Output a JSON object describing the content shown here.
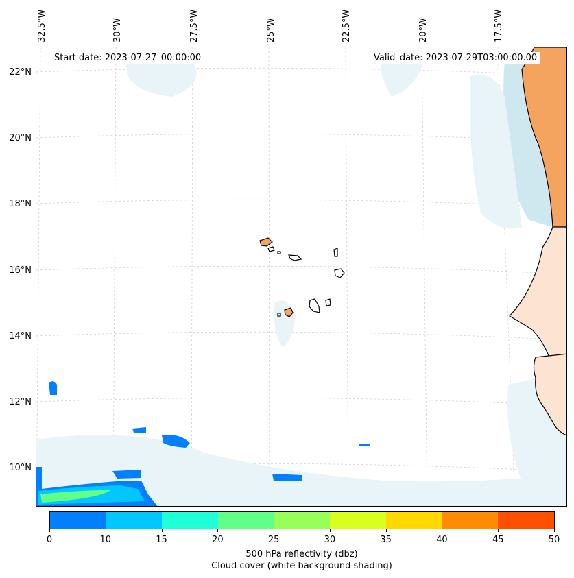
{
  "header": {
    "start_date": "Start date: 2023-07-27_00:00:00",
    "valid_date": "Valid_date: 2023-07-29T03:00:00.00"
  },
  "axes": {
    "lon_labels": [
      "32.5°W",
      "30°W",
      "27.5°W",
      "25°W",
      "22.5°W",
      "20°W",
      "17.5°W"
    ],
    "lat_labels": [
      "22°N",
      "20°N",
      "18°N",
      "16°N",
      "14°N",
      "12°N",
      "10°N"
    ]
  },
  "colorbar": {
    "colors": [
      "#0080ff",
      "#00c8ff",
      "#20ffd8",
      "#60ff88",
      "#98ff58",
      "#d8ff20",
      "#ffd800",
      "#ff8c00",
      "#ff5000"
    ],
    "ticks": [
      "0",
      "10",
      "15",
      "20",
      "25",
      "30",
      "35",
      "40",
      "45",
      "50"
    ],
    "label_line1": "500 hPa reflectivity (dbz)",
    "label_line2": "Cloud cover (white background shading)"
  },
  "map_colors": {
    "land_warm": "#f5a460",
    "land_light": "#fde3d2",
    "cloud": "#cfe8ef",
    "cloud_faint": "#e8f4f7",
    "coast": "#000000",
    "grid": "#cccccc"
  }
}
